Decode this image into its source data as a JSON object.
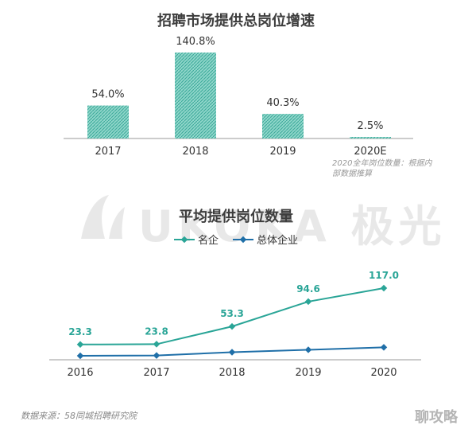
{
  "chart1_title": "招聘市场提供总岗位增速",
  "chart2_title": "平均提供岗位数量",
  "watermark": {
    "text": "UKOKA 极光"
  },
  "footnote": "2020全年岗位数量：根据内部数据推算",
  "source": "数据来源：58同城招聘研究院",
  "brand": "聊攻略",
  "colors": {
    "bar": "#5ec4b3",
    "series1": "#2aa597",
    "series2": "#1f6fa8",
    "axis": "#999999"
  },
  "chart_data": [
    {
      "type": "bar",
      "title": "招聘市场提供总岗位增速",
      "categories": [
        "2017",
        "2018",
        "2019",
        "2020E"
      ],
      "values": [
        54.0,
        140.8,
        40.3,
        2.5
      ],
      "value_labels": [
        "54.0%",
        "140.8%",
        "40.3%",
        "2.5%"
      ]
    },
    {
      "type": "line",
      "title": "平均提供岗位数量",
      "categories": [
        "2016",
        "2017",
        "2018",
        "2019",
        "2020"
      ],
      "series": [
        {
          "name": "名企",
          "values": [
            23.3,
            23.8,
            53.3,
            94.6,
            117.0
          ],
          "labels": [
            "23.3",
            "23.8",
            "53.3",
            "94.6",
            "117.0"
          ]
        },
        {
          "name": "总体企业",
          "values": [
            4.5,
            5.0,
            10.5,
            14.5,
            18.5
          ]
        }
      ]
    }
  ]
}
